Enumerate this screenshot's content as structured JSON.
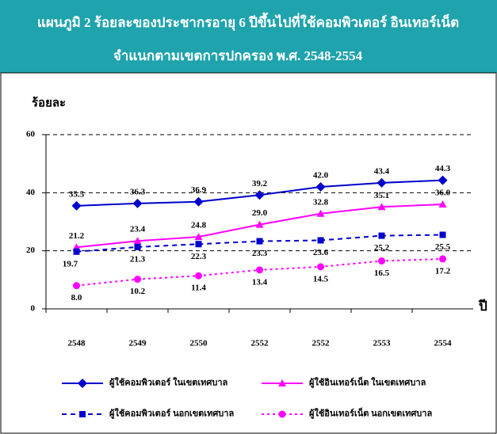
{
  "chart_data": {
    "type": "line",
    "title": [
      "แผนภูมิ 2 ร้อยละของประชากรอายุ 6 ปีขึ้นไปที่ใช้คอมพิวเตอร์ อินเทอร์เน็ต",
      "จำแนกตามเขตการปกครอง พ.ศ. 2548-2554"
    ],
    "ylabel": "ร้อยละ",
    "xlabel": "ปี",
    "categories": [
      "2548",
      "2549",
      "2550",
      "2552",
      "2552",
      "2553",
      "2554"
    ],
    "ylim": [
      0,
      60
    ],
    "yticks": [
      0,
      20,
      40,
      60
    ],
    "grid": true,
    "series": [
      {
        "name": "ผู้ใช้คอมพิวเตอร์ ในเขตเทศบาล",
        "color": "#0000cc",
        "marker": "diamond",
        "line_style": "solid",
        "values": [
          35.5,
          36.3,
          36.9,
          39.2,
          42.0,
          43.4,
          44.3
        ],
        "value_labels": [
          "35.5",
          "36.3",
          "36.9",
          "39.2",
          "42.0",
          "43.4",
          "44.3"
        ]
      },
      {
        "name": "ผู้ใช้อินเทอร์เน็ต ในเขตเทศบาล",
        "color": "#ff00ff",
        "marker": "triangle",
        "line_style": "solid",
        "values": [
          21.2,
          23.4,
          24.8,
          29.0,
          32.8,
          35.1,
          36.0
        ],
        "value_labels": [
          "21.2",
          "23.4",
          "24.8",
          "29.0",
          "32.8",
          "35.1",
          "36.0"
        ]
      },
      {
        "name": "ผู้ใช้คอมพิวเตอร์ นอกเขตเทศบาล",
        "color": "#0000cc",
        "marker": "square",
        "line_style": "dashed",
        "values": [
          19.7,
          21.3,
          22.3,
          23.3,
          23.6,
          25.2,
          25.5
        ],
        "value_labels": [
          "19.7",
          "21.3",
          "22.3",
          "23.3",
          "23.6",
          "25.2",
          "25.5"
        ]
      },
      {
        "name": "ผู้ใช้อินเทอร์เน็ต นอกเขตเทศบาล",
        "color": "#ff00ff",
        "marker": "circle",
        "line_style": "dotted",
        "values": [
          8.0,
          10.2,
          11.4,
          13.4,
          14.5,
          16.5,
          17.2
        ],
        "value_labels": [
          "8.0",
          "10.2",
          "11.4",
          "13.4",
          "14.5",
          "16.5",
          "17.2"
        ]
      }
    ]
  }
}
